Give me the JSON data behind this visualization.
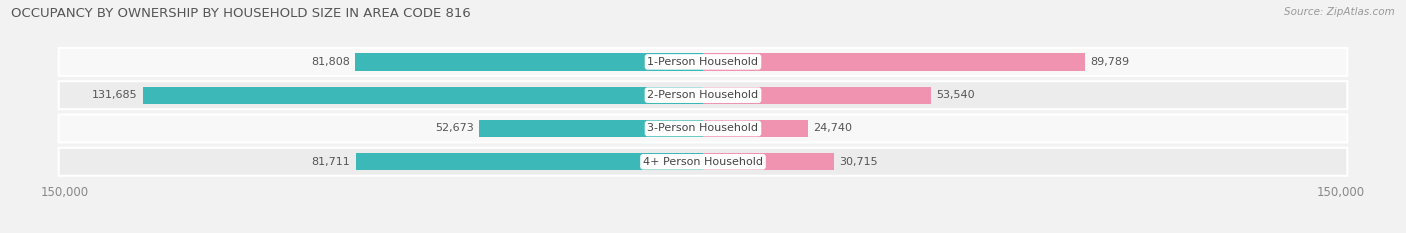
{
  "title": "OCCUPANCY BY OWNERSHIP BY HOUSEHOLD SIZE IN AREA CODE 816",
  "source": "Source: ZipAtlas.com",
  "categories": [
    "1-Person Household",
    "2-Person Household",
    "3-Person Household",
    "4+ Person Household"
  ],
  "owner_values": [
    81808,
    131685,
    52673,
    81711
  ],
  "renter_values": [
    89789,
    53540,
    24740,
    30715
  ],
  "owner_color": "#3db8b8",
  "renter_color": "#f093b0",
  "max_val": 150000,
  "bg_color": "#f2f2f2",
  "row_bg_even": "#f8f8f8",
  "row_bg_odd": "#ececec",
  "title_fontsize": 9.5,
  "label_fontsize": 8,
  "source_fontsize": 7.5,
  "legend_fontsize": 8.5,
  "tick_fontsize": 8.5,
  "title_color": "#555555",
  "label_color": "#555555",
  "tick_color": "#888888"
}
